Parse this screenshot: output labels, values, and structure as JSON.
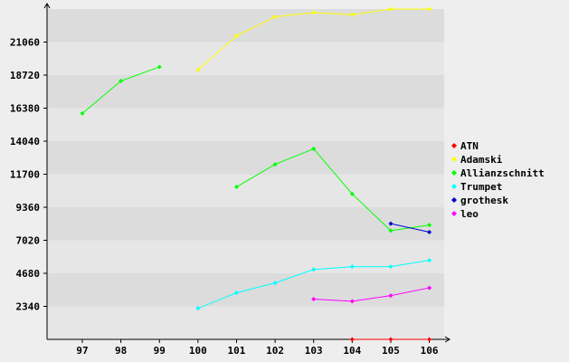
{
  "chart_data": {
    "type": "line",
    "categories": [
      "97",
      "98",
      "99",
      "100",
      "101",
      "102",
      "103",
      "104",
      "105",
      "106"
    ],
    "yticks": [
      2340,
      4680,
      7020,
      9360,
      11700,
      14040,
      16380,
      18720,
      21060
    ],
    "ylim": [
      0,
      23400
    ],
    "grid": "alternating horizontal bands",
    "legend_position": "right",
    "series": [
      {
        "name": "ATN",
        "color": "#ff0000",
        "values": [
          null,
          null,
          null,
          null,
          null,
          null,
          null,
          0,
          0,
          0
        ]
      },
      {
        "name": "Adamski",
        "color": "#ffff00",
        "values": [
          null,
          null,
          null,
          19100,
          21500,
          22850,
          23150,
          23000,
          23400,
          23400
        ]
      },
      {
        "name": "Allianzschnitt",
        "color": "#00ff00",
        "values": [
          16000,
          18300,
          19300,
          null,
          10800,
          12400,
          13500,
          10300,
          7700,
          8100
        ]
      },
      {
        "name": "Trumpet",
        "color": "#00ffff",
        "values": [
          null,
          null,
          null,
          2200,
          3300,
          4000,
          4950,
          5150,
          5150,
          5600
        ]
      },
      {
        "name": "grothesk",
        "color": "#0000cc",
        "values": [
          null,
          null,
          null,
          null,
          null,
          null,
          null,
          null,
          8200,
          7600
        ]
      },
      {
        "name": "leo",
        "color": "#ff00ff",
        "values": [
          null,
          null,
          null,
          null,
          null,
          null,
          2850,
          2700,
          3100,
          3650
        ]
      }
    ]
  }
}
